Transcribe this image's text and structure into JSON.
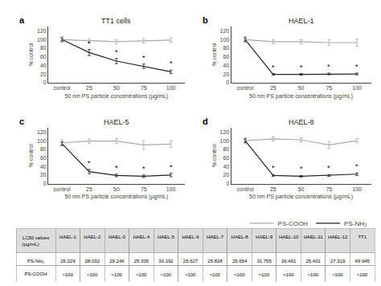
{
  "chart_data": [
    {
      "type": "line",
      "label": "a",
      "title": "TT1 cells",
      "categories": [
        "control",
        "25",
        "50",
        "75",
        "100"
      ],
      "xlabel": "50 nm PS particle concentrations (µg/mL)",
      "ylabel": "% control",
      "ylim": [
        0,
        130
      ],
      "yticks": [
        0,
        20,
        40,
        60,
        80,
        100,
        120
      ],
      "grid": false,
      "legend": "right",
      "series": [
        {
          "name": "PS-COOH",
          "color": "#aaaaaa",
          "values": [
            100,
            97,
            95,
            97,
            99
          ],
          "errors": [
            7,
            5,
            5,
            5,
            5
          ]
        },
        {
          "name": "PS-NH₂",
          "color": "#222222",
          "values": [
            100,
            70,
            50,
            38,
            25
          ],
          "errors": [
            4,
            7,
            6,
            5,
            4
          ]
        }
      ],
      "annotations": [
        {
          "x": "25",
          "series": "PS-NH₂",
          "text": "*"
        },
        {
          "x": "50",
          "series": "PS-NH₂",
          "text": "*"
        },
        {
          "x": "75",
          "series": "PS-NH₂",
          "text": "*"
        },
        {
          "x": "100",
          "series": "PS-NH₂",
          "text": "*"
        }
      ]
    },
    {
      "type": "line",
      "label": "b",
      "title": "HAEL-1",
      "categories": [
        "control",
        "25",
        "50",
        "75",
        "100"
      ],
      "xlabel": "50 nm PS particle concentrations (µg/mL)",
      "ylabel": "% control",
      "ylim": [
        0,
        130
      ],
      "yticks": [
        0,
        20,
        40,
        60,
        80,
        100,
        120
      ],
      "grid": false,
      "series": [
        {
          "name": "PS-COOH",
          "color": "#aaaaaa",
          "values": [
            100,
            95,
            95,
            93,
            93
          ],
          "errors": [
            7,
            5,
            5,
            7,
            8
          ]
        },
        {
          "name": "PS-NH₂",
          "color": "#222222",
          "values": [
            100,
            19,
            19,
            20,
            20
          ],
          "errors": [
            4,
            2,
            2,
            2,
            2
          ]
        }
      ],
      "annotations": [
        {
          "x": "25",
          "series": "PS-NH₂",
          "text": "*"
        },
        {
          "x": "50",
          "series": "PS-NH₂",
          "text": "*"
        },
        {
          "x": "75",
          "series": "PS-NH₂",
          "text": "*"
        },
        {
          "x": "100",
          "series": "PS-NH₂",
          "text": "*"
        }
      ]
    },
    {
      "type": "line",
      "label": "c",
      "title": "HAEL-5",
      "categories": [
        "control",
        "25",
        "50",
        "75",
        "100"
      ],
      "xlabel": "50 nm PS particle concentrations (µg/mL)",
      "ylabel": "% control",
      "ylim": [
        0,
        130
      ],
      "yticks": [
        0,
        20,
        40,
        60,
        80,
        100,
        120
      ],
      "grid": false,
      "series": [
        {
          "name": "PS-COOH",
          "color": "#aaaaaa",
          "values": [
            95,
            99,
            99,
            90,
            92
          ],
          "errors": [
            7,
            5,
            6,
            10,
            8
          ]
        },
        {
          "name": "PS-NH₂",
          "color": "#222222",
          "values": [
            93,
            28,
            19,
            17,
            20
          ],
          "errors": [
            4,
            5,
            3,
            3,
            4
          ]
        }
      ],
      "annotations": [
        {
          "x": "25",
          "series": "PS-NH₂",
          "text": "*"
        },
        {
          "x": "50",
          "series": "PS-NH₂",
          "text": "*"
        },
        {
          "x": "75",
          "series": "PS-NH₂",
          "text": "*"
        },
        {
          "x": "100",
          "series": "PS-NH₂",
          "text": "*"
        }
      ]
    },
    {
      "type": "line",
      "label": "d",
      "title": "HAEL-8",
      "categories": [
        "control",
        "25",
        "50",
        "75",
        "100"
      ],
      "xlabel": "50 nm PS particle concentrations (µg/mL)",
      "ylabel": "% control",
      "ylim": [
        0,
        130
      ],
      "yticks": [
        0,
        20,
        40,
        60,
        80,
        100,
        120
      ],
      "grid": false,
      "series": [
        {
          "name": "PS-COOH",
          "color": "#aaaaaa",
          "values": [
            100,
            104,
            102,
            90,
            100
          ],
          "errors": [
            7,
            5,
            5,
            8,
            5
          ]
        },
        {
          "name": "PS-NH₂",
          "color": "#222222",
          "values": [
            100,
            19,
            17,
            19,
            22
          ],
          "errors": [
            4,
            2,
            2,
            2,
            3
          ]
        }
      ],
      "annotations": [
        {
          "x": "25",
          "series": "PS-NH₂",
          "text": "*"
        },
        {
          "x": "50",
          "series": "PS-NH₂",
          "text": "*"
        },
        {
          "x": "75",
          "series": "PS-NH₂",
          "text": "*"
        },
        {
          "x": "100",
          "series": "PS-NH₂",
          "text": "*"
        }
      ]
    },
    {
      "type": "table",
      "columns": [
        "LC50 values\n(µg/mL)",
        "HAEL-1",
        "HAEL-2",
        "HAEL-3",
        "HAEL-4",
        "HAEL-5",
        "HAEL-6",
        "HAEL-7",
        "HAEL-8",
        "HAEL-9",
        "HAEL-10",
        "HAEL-11",
        "HAEL-12",
        "TT1"
      ],
      "rows": [
        [
          "PS-NH₂",
          "25.229",
          "28.032",
          "29.246",
          "25.305",
          "30.192",
          "25.627",
          "25.828",
          "25.654",
          "31.755",
          "26.461",
          "25.401",
          "27.319",
          "49.945"
        ],
        [
          "PS-COOH",
          ">100",
          ">100",
          ">100",
          ">100",
          ">100",
          ">100",
          ">100",
          ">100",
          ">100",
          ">100",
          ">100",
          ">100",
          ">100"
        ]
      ]
    }
  ]
}
